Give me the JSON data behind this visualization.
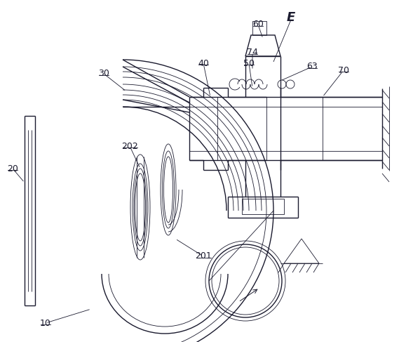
{
  "bg_color": "#ffffff",
  "line_color": "#1a1a2e",
  "lw": 1.0,
  "tlw": 0.6,
  "fig_width": 5.79,
  "fig_height": 4.87,
  "dpi": 100
}
